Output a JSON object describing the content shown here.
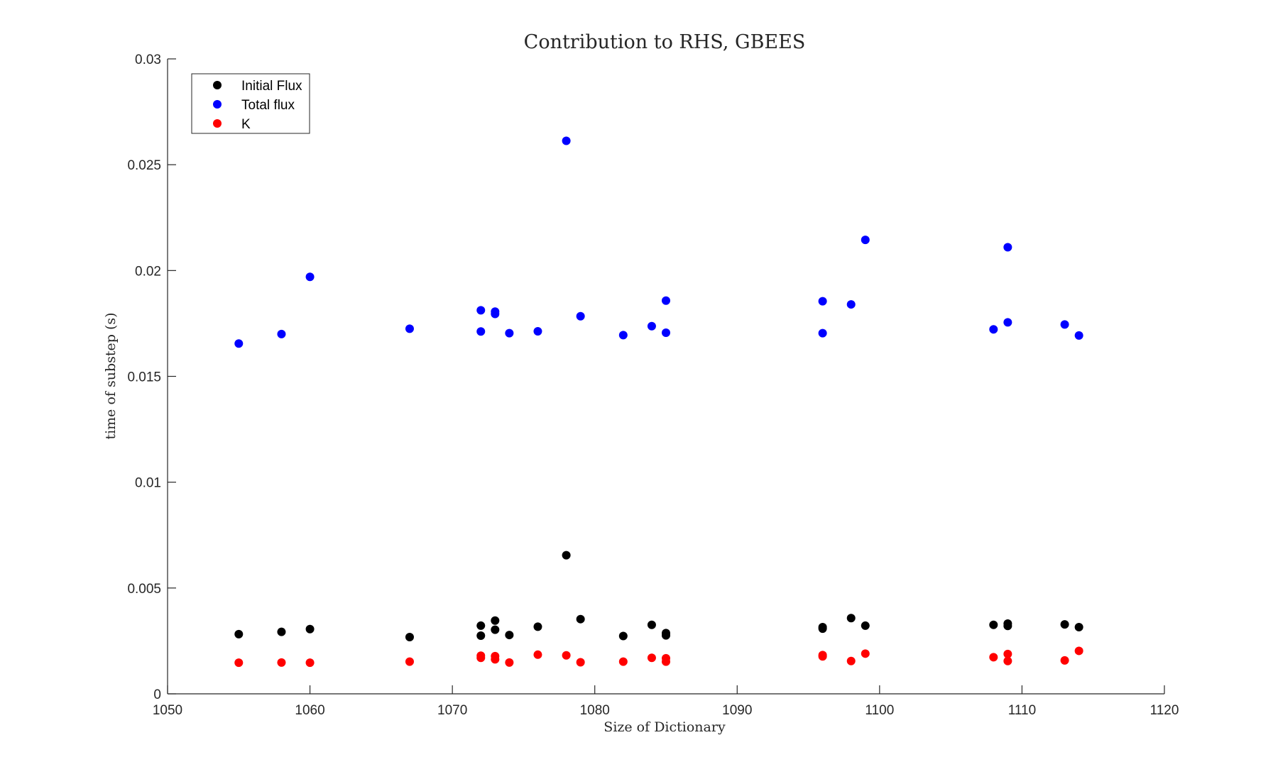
{
  "chart_data": {
    "type": "scatter",
    "title": "Contribution to RHS, GBEES",
    "xlabel": "Size of Dictionary",
    "ylabel": "time of substep (s)",
    "xlim": [
      1050,
      1120
    ],
    "ylim": [
      0,
      0.03
    ],
    "xticks": [
      1050,
      1060,
      1070,
      1080,
      1090,
      1100,
      1110,
      1120
    ],
    "xtick_labels": [
      "1050",
      "1060",
      "1070",
      "1080",
      "1090",
      "1100",
      "1110",
      "1120"
    ],
    "yticks": [
      0,
      0.005,
      0.01,
      0.015,
      0.02,
      0.025,
      0.03
    ],
    "ytick_labels": [
      "0",
      "0.005",
      "0.01",
      "0.015",
      "0.02",
      "0.025",
      "0.03"
    ],
    "grid": false,
    "legend_position": "top-left",
    "series": [
      {
        "name": "Initial Flux",
        "color": "#000000",
        "points": [
          [
            1055,
            0.00282
          ],
          [
            1058,
            0.00293
          ],
          [
            1060,
            0.00306
          ],
          [
            1067,
            0.00268
          ],
          [
            1072,
            0.00322
          ],
          [
            1072,
            0.00275
          ],
          [
            1073,
            0.00346
          ],
          [
            1073,
            0.00303
          ],
          [
            1074,
            0.00278
          ],
          [
            1076,
            0.00317
          ],
          [
            1078,
            0.00655
          ],
          [
            1079,
            0.00353
          ],
          [
            1082,
            0.00273
          ],
          [
            1084,
            0.00326
          ],
          [
            1085,
            0.00287
          ],
          [
            1085,
            0.00276
          ],
          [
            1096,
            0.00315
          ],
          [
            1096,
            0.00308
          ],
          [
            1098,
            0.00358
          ],
          [
            1099,
            0.00322
          ],
          [
            1108,
            0.00326
          ],
          [
            1109,
            0.00332
          ],
          [
            1109,
            0.00321
          ],
          [
            1113,
            0.00328
          ],
          [
            1114,
            0.00315
          ]
        ]
      },
      {
        "name": "Total flux",
        "color": "#0000ff",
        "points": [
          [
            1055,
            0.01655
          ],
          [
            1058,
            0.017
          ],
          [
            1060,
            0.0197
          ],
          [
            1067,
            0.01725
          ],
          [
            1072,
            0.01812
          ],
          [
            1072,
            0.01712
          ],
          [
            1073,
            0.01806
          ],
          [
            1073,
            0.01795
          ],
          [
            1074,
            0.01704
          ],
          [
            1076,
            0.01713
          ],
          [
            1078,
            0.02613
          ],
          [
            1079,
            0.01784
          ],
          [
            1082,
            0.01695
          ],
          [
            1084,
            0.01737
          ],
          [
            1085,
            0.01858
          ],
          [
            1085,
            0.01706
          ],
          [
            1096,
            0.01855
          ],
          [
            1096,
            0.01704
          ],
          [
            1098,
            0.0184
          ],
          [
            1099,
            0.02145
          ],
          [
            1108,
            0.01722
          ],
          [
            1109,
            0.0211
          ],
          [
            1109,
            0.01755
          ],
          [
            1113,
            0.01745
          ],
          [
            1114,
            0.01693
          ]
        ]
      },
      {
        "name": "K",
        "color": "#ff0000",
        "points": [
          [
            1055,
            0.00147
          ],
          [
            1058,
            0.00148
          ],
          [
            1060,
            0.00147
          ],
          [
            1067,
            0.00152
          ],
          [
            1072,
            0.0018
          ],
          [
            1072,
            0.0017
          ],
          [
            1073,
            0.00178
          ],
          [
            1073,
            0.00163
          ],
          [
            1074,
            0.00148
          ],
          [
            1076,
            0.00185
          ],
          [
            1078,
            0.00182
          ],
          [
            1079,
            0.00149
          ],
          [
            1082,
            0.00152
          ],
          [
            1084,
            0.0017
          ],
          [
            1085,
            0.00168
          ],
          [
            1085,
            0.00152
          ],
          [
            1096,
            0.00183
          ],
          [
            1096,
            0.00177
          ],
          [
            1098,
            0.00155
          ],
          [
            1099,
            0.0019
          ],
          [
            1108,
            0.00173
          ],
          [
            1109,
            0.00188
          ],
          [
            1109,
            0.00155
          ],
          [
            1113,
            0.00158
          ],
          [
            1114,
            0.00203
          ]
        ]
      }
    ]
  }
}
